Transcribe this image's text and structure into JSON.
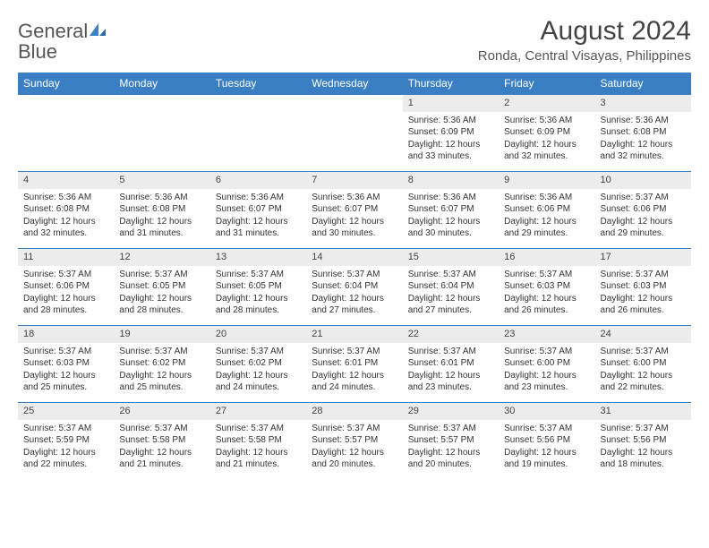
{
  "brand": {
    "word1": "General",
    "word2": "Blue"
  },
  "title": "August 2024",
  "location": "Ronda, Central Visayas, Philippines",
  "colors": {
    "header_bg": "#3a7fc4",
    "header_fg": "#ffffff",
    "daynum_bg": "#ececec",
    "border": "#3a7fc4",
    "text": "#333333",
    "brand_gray": "#555555",
    "brand_blue": "#3a7fc4"
  },
  "daynames": [
    "Sunday",
    "Monday",
    "Tuesday",
    "Wednesday",
    "Thursday",
    "Friday",
    "Saturday"
  ],
  "weeks": [
    [
      null,
      null,
      null,
      null,
      {
        "n": "1",
        "sr": "5:36 AM",
        "ss": "6:09 PM",
        "dl": "12 hours and 33 minutes."
      },
      {
        "n": "2",
        "sr": "5:36 AM",
        "ss": "6:09 PM",
        "dl": "12 hours and 32 minutes."
      },
      {
        "n": "3",
        "sr": "5:36 AM",
        "ss": "6:08 PM",
        "dl": "12 hours and 32 minutes."
      }
    ],
    [
      {
        "n": "4",
        "sr": "5:36 AM",
        "ss": "6:08 PM",
        "dl": "12 hours and 32 minutes."
      },
      {
        "n": "5",
        "sr": "5:36 AM",
        "ss": "6:08 PM",
        "dl": "12 hours and 31 minutes."
      },
      {
        "n": "6",
        "sr": "5:36 AM",
        "ss": "6:07 PM",
        "dl": "12 hours and 31 minutes."
      },
      {
        "n": "7",
        "sr": "5:36 AM",
        "ss": "6:07 PM",
        "dl": "12 hours and 30 minutes."
      },
      {
        "n": "8",
        "sr": "5:36 AM",
        "ss": "6:07 PM",
        "dl": "12 hours and 30 minutes."
      },
      {
        "n": "9",
        "sr": "5:36 AM",
        "ss": "6:06 PM",
        "dl": "12 hours and 29 minutes."
      },
      {
        "n": "10",
        "sr": "5:37 AM",
        "ss": "6:06 PM",
        "dl": "12 hours and 29 minutes."
      }
    ],
    [
      {
        "n": "11",
        "sr": "5:37 AM",
        "ss": "6:06 PM",
        "dl": "12 hours and 28 minutes."
      },
      {
        "n": "12",
        "sr": "5:37 AM",
        "ss": "6:05 PM",
        "dl": "12 hours and 28 minutes."
      },
      {
        "n": "13",
        "sr": "5:37 AM",
        "ss": "6:05 PM",
        "dl": "12 hours and 28 minutes."
      },
      {
        "n": "14",
        "sr": "5:37 AM",
        "ss": "6:04 PM",
        "dl": "12 hours and 27 minutes."
      },
      {
        "n": "15",
        "sr": "5:37 AM",
        "ss": "6:04 PM",
        "dl": "12 hours and 27 minutes."
      },
      {
        "n": "16",
        "sr": "5:37 AM",
        "ss": "6:03 PM",
        "dl": "12 hours and 26 minutes."
      },
      {
        "n": "17",
        "sr": "5:37 AM",
        "ss": "6:03 PM",
        "dl": "12 hours and 26 minutes."
      }
    ],
    [
      {
        "n": "18",
        "sr": "5:37 AM",
        "ss": "6:03 PM",
        "dl": "12 hours and 25 minutes."
      },
      {
        "n": "19",
        "sr": "5:37 AM",
        "ss": "6:02 PM",
        "dl": "12 hours and 25 minutes."
      },
      {
        "n": "20",
        "sr": "5:37 AM",
        "ss": "6:02 PM",
        "dl": "12 hours and 24 minutes."
      },
      {
        "n": "21",
        "sr": "5:37 AM",
        "ss": "6:01 PM",
        "dl": "12 hours and 24 minutes."
      },
      {
        "n": "22",
        "sr": "5:37 AM",
        "ss": "6:01 PM",
        "dl": "12 hours and 23 minutes."
      },
      {
        "n": "23",
        "sr": "5:37 AM",
        "ss": "6:00 PM",
        "dl": "12 hours and 23 minutes."
      },
      {
        "n": "24",
        "sr": "5:37 AM",
        "ss": "6:00 PM",
        "dl": "12 hours and 22 minutes."
      }
    ],
    [
      {
        "n": "25",
        "sr": "5:37 AM",
        "ss": "5:59 PM",
        "dl": "12 hours and 22 minutes."
      },
      {
        "n": "26",
        "sr": "5:37 AM",
        "ss": "5:58 PM",
        "dl": "12 hours and 21 minutes."
      },
      {
        "n": "27",
        "sr": "5:37 AM",
        "ss": "5:58 PM",
        "dl": "12 hours and 21 minutes."
      },
      {
        "n": "28",
        "sr": "5:37 AM",
        "ss": "5:57 PM",
        "dl": "12 hours and 20 minutes."
      },
      {
        "n": "29",
        "sr": "5:37 AM",
        "ss": "5:57 PM",
        "dl": "12 hours and 20 minutes."
      },
      {
        "n": "30",
        "sr": "5:37 AM",
        "ss": "5:56 PM",
        "dl": "12 hours and 19 minutes."
      },
      {
        "n": "31",
        "sr": "5:37 AM",
        "ss": "5:56 PM",
        "dl": "12 hours and 18 minutes."
      }
    ]
  ],
  "labels": {
    "sunrise": "Sunrise: ",
    "sunset": "Sunset: ",
    "daylight": "Daylight: "
  }
}
